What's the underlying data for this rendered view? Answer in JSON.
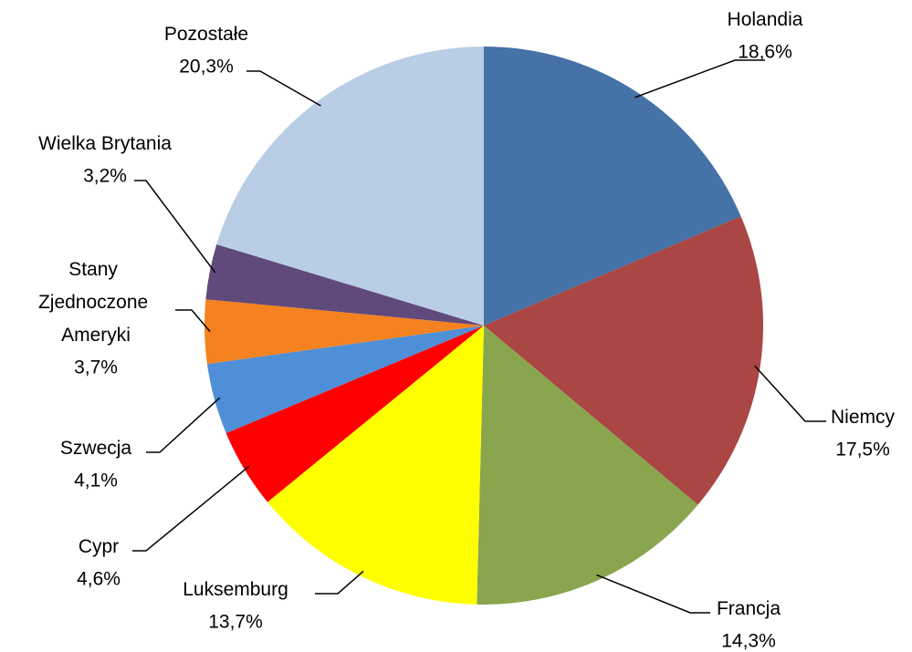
{
  "chart_data": {
    "type": "pie",
    "categories": [
      "Holandia",
      "Niemcy",
      "Francja",
      "Luksemburg",
      "Cypr",
      "Szwecja",
      "Stany Zjednoczone Ameryki",
      "Wielka Brytania",
      "Pozostałe"
    ],
    "values": [
      18.6,
      17.5,
      14.3,
      13.7,
      4.6,
      4.1,
      3.7,
      3.2,
      20.3
    ],
    "value_labels": [
      "18,6%",
      "17,5%",
      "14,3%",
      "13,7%",
      "4,6%",
      "4,1%",
      "3,7%",
      "3,2%",
      "20,3%"
    ],
    "colors": [
      "#4572a7",
      "#aa4643",
      "#89a54e",
      "#ffff00",
      "#ff0000",
      "#4f8fd8",
      "#f58220",
      "#604a7b",
      "#b9cde5"
    ]
  }
}
